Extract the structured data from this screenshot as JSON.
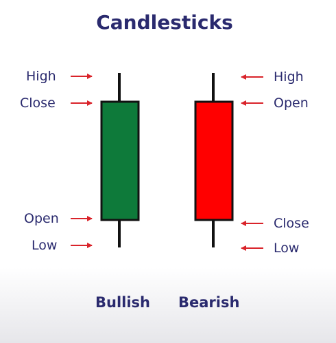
{
  "title": "Candlesticks",
  "colors": {
    "bullish": "#0e7a3a",
    "bearish": "#ff0000",
    "arrow": "#d9232a",
    "text": "#2a2a6e"
  },
  "bullish": {
    "caption": "Bullish",
    "labels": {
      "high": "High",
      "close": "Close",
      "open": "Open",
      "low": "Low"
    }
  },
  "bearish": {
    "caption": "Bearish",
    "labels": {
      "high": "High",
      "open": "Open",
      "close": "Close",
      "low": "Low"
    }
  }
}
